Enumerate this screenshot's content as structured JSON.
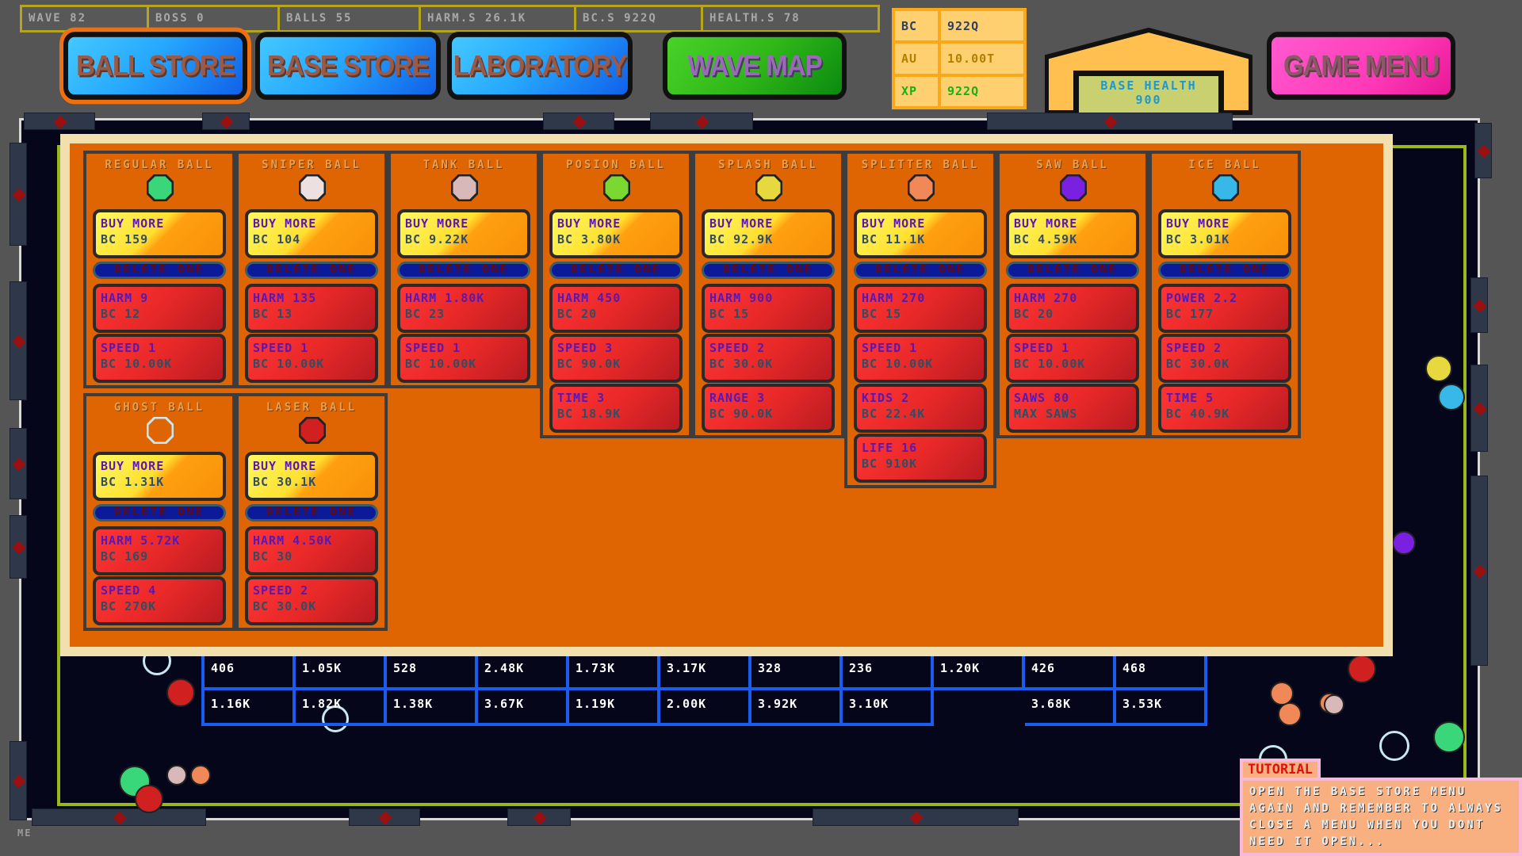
{
  "stats_bar": [
    "WAVE 82",
    "BOSS 0",
    "BALLS 55",
    "HARM.S 26.1K",
    "BC.S 922Q",
    "HEALTH.S 78"
  ],
  "nav": {
    "ball_store": "BALL STORE",
    "base_store": "BASE STORE",
    "laboratory": "LABORATORY",
    "wave_map": "WAVE MAP",
    "game_menu": "GAME MENU"
  },
  "resources": [
    {
      "label": "BC",
      "value": "922Q",
      "color": "#2f4060"
    },
    {
      "label": "AU",
      "value": "10.00T",
      "color": "#b08000"
    },
    {
      "label": "XP",
      "value": "922Q",
      "color": "#18b018"
    }
  ],
  "base": {
    "label": "BASE HEALTH",
    "value": "900"
  },
  "store": {
    "buy_label": "BUY MORE",
    "delete_label": "DELETE ONE",
    "balls": [
      {
        "name": "REGULAR BALL",
        "icon": "regular-ball-icon",
        "color": "#3ad67a",
        "buy_cost": "BC 159",
        "stats": [
          [
            "HARM 9",
            "BC 12"
          ],
          [
            "SPEED 1",
            "BC 10.00K"
          ]
        ]
      },
      {
        "name": "SNIPER BALL",
        "icon": "sniper-ball-icon",
        "color": "#ece0e0",
        "buy_cost": "BC 104",
        "stats": [
          [
            "HARM 135",
            "BC 13"
          ],
          [
            "SPEED 1",
            "BC 10.00K"
          ]
        ]
      },
      {
        "name": "TANK BALL",
        "icon": "tank-ball-icon",
        "color": "#d8b8b8",
        "buy_cost": "BC 9.22K",
        "stats": [
          [
            "HARM 1.80K",
            "BC 23"
          ],
          [
            "SPEED 1",
            "BC 10.00K"
          ]
        ]
      },
      {
        "name": "POSION BALL",
        "icon": "poison-ball-icon",
        "color": "#7ad830",
        "buy_cost": "BC 3.80K",
        "stats": [
          [
            "HARM 450",
            "BC 20"
          ],
          [
            "SPEED 3",
            "BC 90.0K"
          ],
          [
            "TIME 3",
            "BC 18.9K"
          ]
        ]
      },
      {
        "name": "SPLASH BALL",
        "icon": "splash-ball-icon",
        "color": "#e8d840",
        "buy_cost": "BC 92.9K",
        "stats": [
          [
            "HARM 900",
            "BC 15"
          ],
          [
            "SPEED 2",
            "BC 30.0K"
          ],
          [
            "RANGE 3",
            "BC 90.0K"
          ]
        ]
      },
      {
        "name": "SPLITTER BALL",
        "icon": "splitter-ball-icon",
        "color": "#f08858",
        "buy_cost": "BC 11.1K",
        "stats": [
          [
            "HARM 270",
            "BC 15"
          ],
          [
            "SPEED 1",
            "BC 10.00K"
          ],
          [
            "KIDS 2",
            "BC 22.4K"
          ],
          [
            "LIFE 16",
            "BC 910K"
          ]
        ]
      },
      {
        "name": "SAW BALL",
        "icon": "saw-ball-icon",
        "color": "#7a20e0",
        "buy_cost": "BC 4.59K",
        "stats": [
          [
            "HARM 270",
            "BC 20"
          ],
          [
            "SPEED 1",
            "BC 10.00K"
          ],
          [
            "SAWS 80",
            "MAX SAWS"
          ]
        ]
      },
      {
        "name": "ICE BALL",
        "icon": "ice-ball-icon",
        "color": "#38b8e8",
        "buy_cost": "BC 3.01K",
        "stats": [
          [
            "POWER 2.2",
            "BC 177"
          ],
          [
            "SPEED 2",
            "BC 30.0K"
          ],
          [
            "TIME 5",
            "BC 40.9K"
          ]
        ]
      },
      {
        "name": "GHOST BALL",
        "icon": "ghost-ball-icon",
        "color": "#c8e8f0",
        "buy_cost": "BC 1.31K",
        "stats": [
          [
            "HARM 5.72K",
            "BC 169"
          ],
          [
            "SPEED 4",
            "BC 270K"
          ]
        ]
      },
      {
        "name": "LASER BALL",
        "icon": "laser-ball-icon",
        "color": "#d02020",
        "buy_cost": "BC 30.1K",
        "stats": [
          [
            "HARM 4.50K",
            "BC 30"
          ],
          [
            "SPEED 2",
            "BC 30.0K"
          ]
        ]
      }
    ]
  },
  "brick_grid": [
    [
      "406",
      "1.05K",
      "528",
      "2.48K",
      "1.73K",
      "3.17K",
      "328",
      "236",
      "1.20K",
      "426",
      "468"
    ],
    [
      "1.16K",
      "1.82K",
      "1.38K",
      "3.67K",
      "1.19K",
      "2.00K",
      "3.92K",
      "3.10K",
      "",
      "3.68K",
      "3.53K"
    ]
  ],
  "corner_label": "ME",
  "tutorial": {
    "title": "TUTORIAL",
    "text": "OPEN THE BASE STORE MENU AGAIN AND REMEMBER TO ALWAYS CLOSE A MENU WHEN YOU DONT NEED IT OPEN..."
  }
}
